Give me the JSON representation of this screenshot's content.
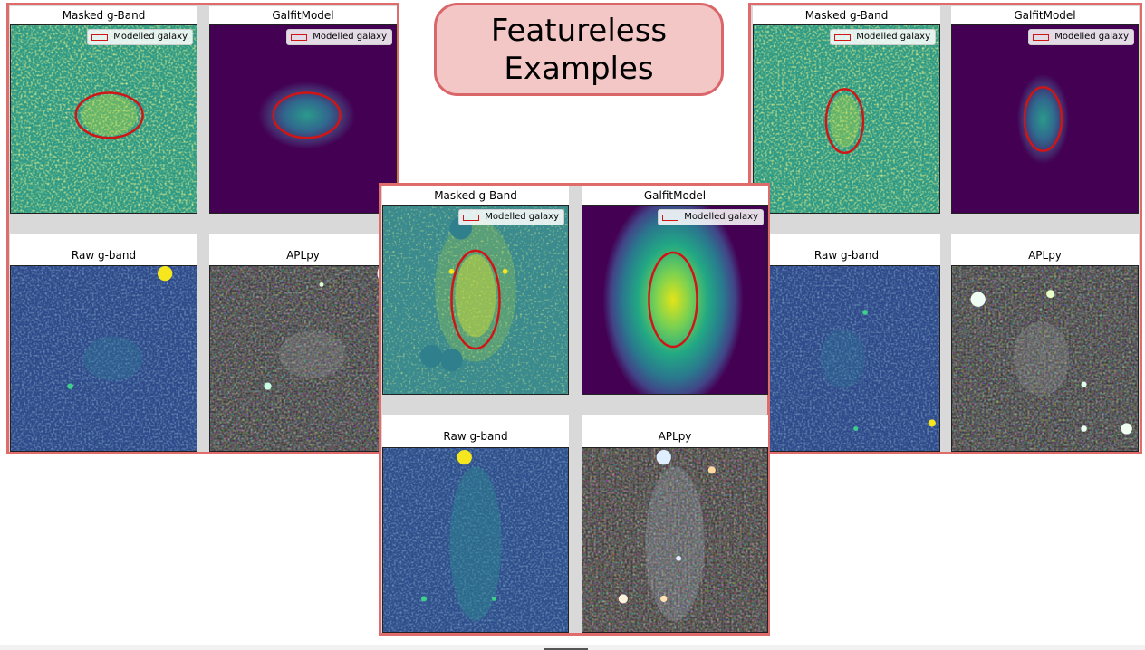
{
  "slide": {
    "title": "Featureless Examples",
    "border_color": "#e06b6b",
    "title_fill": "#f4c7c7"
  },
  "panel_labels": {
    "masked": "Masked g-Band",
    "galfit": "GalfitModel",
    "raw": "Raw g-band",
    "aplpy": "APLpy",
    "legend": "Modelled galaxy"
  },
  "icons": {
    "legend_swatch": "red-rectangle-icon",
    "ellipse_color": "#d01515"
  },
  "colormaps": {
    "masked": "viridis-noise",
    "galfit": "viridis-smooth",
    "raw": "viridis-dark",
    "aplpy": "rgb-composite"
  }
}
